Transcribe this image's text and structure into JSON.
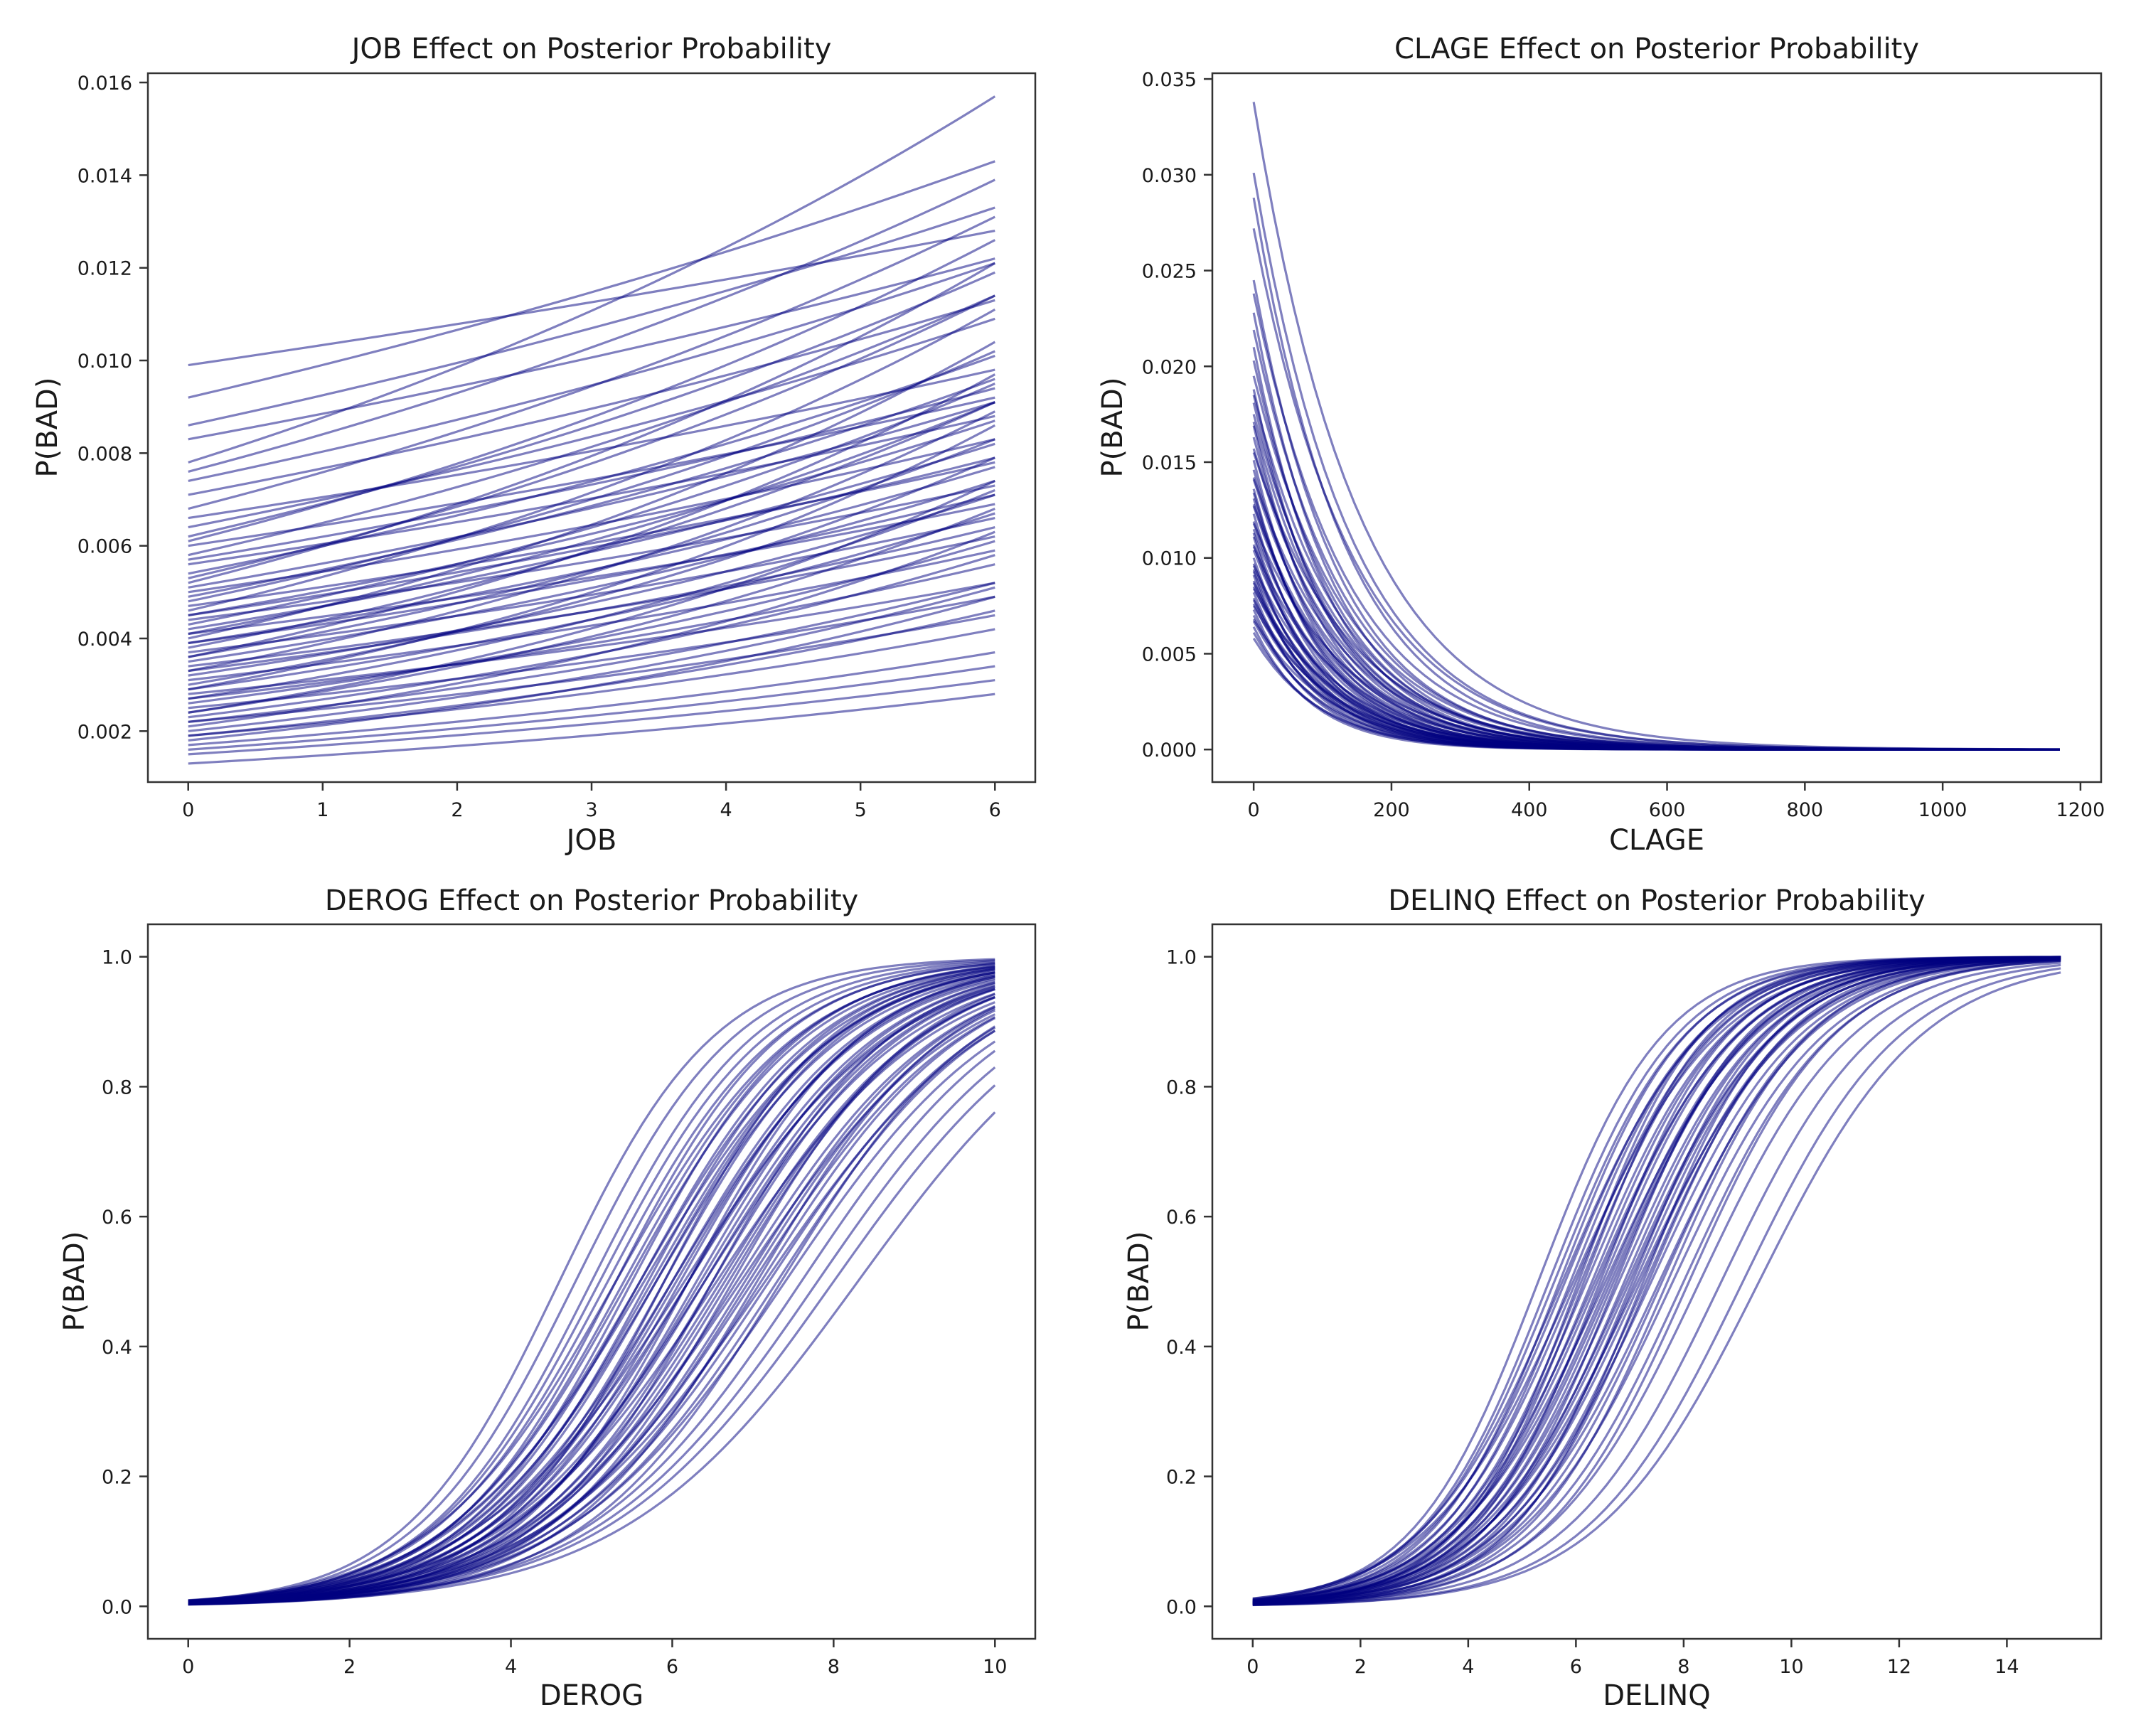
{
  "figure": {
    "line_color": "#000080",
    "line_opacity": 0.5,
    "background": "#ffffff"
  },
  "chart_data": [
    {
      "type": "line",
      "title": "JOB Effect on Posterior Probability",
      "xlabel": "JOB",
      "ylabel": "P(BAD)",
      "xlim": [
        -0.3,
        6.3
      ],
      "ylim": [
        0.0009,
        0.0162
      ],
      "xticks": [
        0,
        1,
        2,
        3,
        4,
        5,
        6
      ],
      "xtick_labels": [
        "0",
        "1",
        "2",
        "3",
        "4",
        "5",
        "6"
      ],
      "yticks": [
        0.002,
        0.004,
        0.006,
        0.008,
        0.01,
        0.012,
        0.014,
        0.016
      ],
      "ytick_labels": [
        "0.002",
        "0.004",
        "0.006",
        "0.008",
        "0.010",
        "0.012",
        "0.014",
        "0.016"
      ],
      "x_range": [
        0,
        6
      ],
      "curve_model": "logistic",
      "description": "~100 posterior draws; each line P = sigmoid(a + b*JOB)",
      "series": [
        {
          "start": 0.0099,
          "end": 0.0128
        },
        {
          "start": 0.0092,
          "end": 0.0143
        },
        {
          "start": 0.0086,
          "end": 0.0133
        },
        {
          "start": 0.0083,
          "end": 0.0122
        },
        {
          "start": 0.0078,
          "end": 0.0157
        },
        {
          "start": 0.0076,
          "end": 0.0139
        },
        {
          "start": 0.0074,
          "end": 0.0121
        },
        {
          "start": 0.0071,
          "end": 0.0113
        },
        {
          "start": 0.0068,
          "end": 0.0131
        },
        {
          "start": 0.0066,
          "end": 0.0098
        },
        {
          "start": 0.0064,
          "end": 0.0109
        },
        {
          "start": 0.0061,
          "end": 0.0126
        },
        {
          "start": 0.006,
          "end": 0.0092
        },
        {
          "start": 0.0058,
          "end": 0.0114
        },
        {
          "start": 0.0056,
          "end": 0.0088
        },
        {
          "start": 0.0054,
          "end": 0.0101
        },
        {
          "start": 0.0052,
          "end": 0.0121
        },
        {
          "start": 0.0051,
          "end": 0.0091
        },
        {
          "start": 0.005,
          "end": 0.0083
        },
        {
          "start": 0.0049,
          "end": 0.0096
        },
        {
          "start": 0.0047,
          "end": 0.0078
        },
        {
          "start": 0.0046,
          "end": 0.0111
        },
        {
          "start": 0.0045,
          "end": 0.0087
        },
        {
          "start": 0.0044,
          "end": 0.0073
        },
        {
          "start": 0.0043,
          "end": 0.0095
        },
        {
          "start": 0.0042,
          "end": 0.0082
        },
        {
          "start": 0.0041,
          "end": 0.0069
        },
        {
          "start": 0.004,
          "end": 0.0104
        },
        {
          "start": 0.0039,
          "end": 0.0077
        },
        {
          "start": 0.0038,
          "end": 0.0091
        },
        {
          "start": 0.0037,
          "end": 0.0066
        },
        {
          "start": 0.0036,
          "end": 0.0083
        },
        {
          "start": 0.0035,
          "end": 0.0074
        },
        {
          "start": 0.0034,
          "end": 0.0062
        },
        {
          "start": 0.0033,
          "end": 0.0089
        },
        {
          "start": 0.0032,
          "end": 0.0071
        },
        {
          "start": 0.0031,
          "end": 0.0059
        },
        {
          "start": 0.003,
          "end": 0.0079
        },
        {
          "start": 0.0029,
          "end": 0.0067
        },
        {
          "start": 0.0028,
          "end": 0.0052
        },
        {
          "start": 0.0027,
          "end": 0.0072
        },
        {
          "start": 0.0026,
          "end": 0.0061
        },
        {
          "start": 0.0025,
          "end": 0.0049
        },
        {
          "start": 0.0024,
          "end": 0.0068
        },
        {
          "start": 0.0023,
          "end": 0.0058
        },
        {
          "start": 0.0022,
          "end": 0.0045
        },
        {
          "start": 0.0021,
          "end": 0.0063
        },
        {
          "start": 0.002,
          "end": 0.0051
        },
        {
          "start": 0.0019,
          "end": 0.0042
        },
        {
          "start": 0.0018,
          "end": 0.0049
        },
        {
          "start": 0.0017,
          "end": 0.0037
        },
        {
          "start": 0.0016,
          "end": 0.0034
        },
        {
          "start": 0.0015,
          "end": 0.0031
        },
        {
          "start": 0.0013,
          "end": 0.0028
        },
        {
          "start": 0.0053,
          "end": 0.0114
        },
        {
          "start": 0.0048,
          "end": 0.0102
        },
        {
          "start": 0.0041,
          "end": 0.0091
        },
        {
          "start": 0.0036,
          "end": 0.0097
        },
        {
          "start": 0.0029,
          "end": 0.0086
        },
        {
          "start": 0.0024,
          "end": 0.0074
        },
        {
          "start": 0.0062,
          "end": 0.0119
        },
        {
          "start": 0.0057,
          "end": 0.0094
        },
        {
          "start": 0.0045,
          "end": 0.0079
        },
        {
          "start": 0.0039,
          "end": 0.0071
        },
        {
          "start": 0.0033,
          "end": 0.0064
        },
        {
          "start": 0.0027,
          "end": 0.0056
        },
        {
          "start": 0.0022,
          "end": 0.0052
        },
        {
          "start": 0.0019,
          "end": 0.0046
        }
      ]
    },
    {
      "type": "line",
      "title": "CLAGE Effect on Posterior Probability",
      "xlabel": "CLAGE",
      "ylabel": "P(BAD)",
      "xlim": [
        -60,
        1230
      ],
      "ylim": [
        -0.0017,
        0.0353
      ],
      "xticks": [
        0,
        200,
        400,
        600,
        800,
        1000,
        1200
      ],
      "xtick_labels": [
        "0",
        "200",
        "400",
        "600",
        "800",
        "1000",
        "1200"
      ],
      "yticks": [
        0.0,
        0.005,
        0.01,
        0.015,
        0.02,
        0.025,
        0.03,
        0.035
      ],
      "ytick_labels": [
        "0.000",
        "0.005",
        "0.010",
        "0.015",
        "0.020",
        "0.025",
        "0.030",
        "0.035"
      ],
      "x_range": [
        0,
        1170
      ],
      "curve_model": "logistic",
      "description": "~100 posterior draws; each line P = sigmoid(a + b*CLAGE), decaying to ~0",
      "series": [
        {
          "start": 0.0338,
          "scale": 148
        },
        {
          "start": 0.0301,
          "scale": 139
        },
        {
          "start": 0.0288,
          "scale": 131
        },
        {
          "start": 0.0272,
          "scale": 142
        },
        {
          "start": 0.0245,
          "scale": 124
        },
        {
          "start": 0.0238,
          "scale": 135
        },
        {
          "start": 0.0228,
          "scale": 118
        },
        {
          "start": 0.0219,
          "scale": 129
        },
        {
          "start": 0.021,
          "scale": 112
        },
        {
          "start": 0.0203,
          "scale": 121
        },
        {
          "start": 0.0195,
          "scale": 133
        },
        {
          "start": 0.0188,
          "scale": 108
        },
        {
          "start": 0.0181,
          "scale": 116
        },
        {
          "start": 0.0175,
          "scale": 126
        },
        {
          "start": 0.0169,
          "scale": 104
        },
        {
          "start": 0.0163,
          "scale": 113
        },
        {
          "start": 0.0157,
          "scale": 122
        },
        {
          "start": 0.0151,
          "scale": 101
        },
        {
          "start": 0.0146,
          "scale": 110
        },
        {
          "start": 0.0141,
          "scale": 119
        },
        {
          "start": 0.0136,
          "scale": 98
        },
        {
          "start": 0.0131,
          "scale": 107
        },
        {
          "start": 0.0127,
          "scale": 115
        },
        {
          "start": 0.0123,
          "scale": 95
        },
        {
          "start": 0.0119,
          "scale": 104
        },
        {
          "start": 0.0115,
          "scale": 112
        },
        {
          "start": 0.0111,
          "scale": 93
        },
        {
          "start": 0.0107,
          "scale": 101
        },
        {
          "start": 0.0104,
          "scale": 109
        },
        {
          "start": 0.01,
          "scale": 91
        },
        {
          "start": 0.0097,
          "scale": 99
        },
        {
          "start": 0.0094,
          "scale": 106
        },
        {
          "start": 0.0091,
          "scale": 89
        },
        {
          "start": 0.0088,
          "scale": 97
        },
        {
          "start": 0.0085,
          "scale": 104
        },
        {
          "start": 0.0082,
          "scale": 88
        },
        {
          "start": 0.0079,
          "scale": 95
        },
        {
          "start": 0.0076,
          "scale": 101
        },
        {
          "start": 0.0073,
          "scale": 86
        },
        {
          "start": 0.007,
          "scale": 93
        },
        {
          "start": 0.0067,
          "scale": 99
        },
        {
          "start": 0.0064,
          "scale": 85
        },
        {
          "start": 0.0061,
          "scale": 92
        },
        {
          "start": 0.0058,
          "scale": 97
        },
        {
          "start": 0.0155,
          "scale": 137
        },
        {
          "start": 0.0142,
          "scale": 128
        },
        {
          "start": 0.0128,
          "scale": 120
        },
        {
          "start": 0.0118,
          "scale": 131
        },
        {
          "start": 0.0106,
          "scale": 124
        },
        {
          "start": 0.0096,
          "scale": 117
        },
        {
          "start": 0.0087,
          "scale": 112
        },
        {
          "start": 0.0078,
          "scale": 108
        },
        {
          "start": 0.0185,
          "scale": 127
        },
        {
          "start": 0.0171,
          "scale": 119
        },
        {
          "start": 0.0134,
          "scale": 102
        },
        {
          "start": 0.0113,
          "scale": 96
        },
        {
          "start": 0.0093,
          "scale": 90
        },
        {
          "start": 0.0084,
          "scale": 121
        },
        {
          "start": 0.0075,
          "scale": 115
        },
        {
          "start": 0.0068,
          "scale": 110
        }
      ]
    },
    {
      "type": "line",
      "title": "DEROG Effect on Posterior Probability",
      "xlabel": "DEROG",
      "ylabel": "P(BAD)",
      "xlim": [
        -0.5,
        10.5
      ],
      "ylim": [
        -0.05,
        1.05
      ],
      "xticks": [
        0,
        2,
        4,
        6,
        8,
        10
      ],
      "xtick_labels": [
        "0",
        "2",
        "4",
        "6",
        "8",
        "10"
      ],
      "yticks": [
        0.0,
        0.2,
        0.4,
        0.6,
        0.8,
        1.0
      ],
      "ytick_labels": [
        "0.0",
        "0.2",
        "0.4",
        "0.6",
        "0.8",
        "1.0"
      ],
      "x_range": [
        0,
        10
      ],
      "curve_model": "logistic",
      "description": "~100 posterior draws; each line P = sigmoid(a + b*DEROG); midpoint and slope per draw",
      "series": [
        {
          "mid": 4.6,
          "slope": 1.03
        },
        {
          "mid": 4.8,
          "slope": 1.0
        },
        {
          "mid": 5.0,
          "slope": 0.98
        },
        {
          "mid": 5.1,
          "slope": 0.95
        },
        {
          "mid": 5.2,
          "slope": 0.93
        },
        {
          "mid": 5.3,
          "slope": 0.96
        },
        {
          "mid": 5.4,
          "slope": 0.91
        },
        {
          "mid": 5.5,
          "slope": 0.94
        },
        {
          "mid": 5.6,
          "slope": 0.9
        },
        {
          "mid": 5.6,
          "slope": 0.86
        },
        {
          "mid": 5.7,
          "slope": 0.92
        },
        {
          "mid": 5.8,
          "slope": 0.88
        },
        {
          "mid": 5.8,
          "slope": 0.84
        },
        {
          "mid": 5.9,
          "slope": 0.9
        },
        {
          "mid": 6.0,
          "slope": 0.86
        },
        {
          "mid": 6.0,
          "slope": 0.82
        },
        {
          "mid": 6.1,
          "slope": 0.88
        },
        {
          "mid": 6.2,
          "slope": 0.84
        },
        {
          "mid": 6.2,
          "slope": 0.8
        },
        {
          "mid": 6.3,
          "slope": 0.86
        },
        {
          "mid": 6.4,
          "slope": 0.82
        },
        {
          "mid": 6.4,
          "slope": 0.78
        },
        {
          "mid": 6.5,
          "slope": 0.84
        },
        {
          "mid": 6.6,
          "slope": 0.8
        },
        {
          "mid": 6.7,
          "slope": 0.82
        },
        {
          "mid": 6.8,
          "slope": 0.78
        },
        {
          "mid": 6.9,
          "slope": 0.8
        },
        {
          "mid": 7.0,
          "slope": 0.76
        },
        {
          "mid": 7.1,
          "slope": 0.78
        },
        {
          "mid": 7.2,
          "slope": 0.75
        },
        {
          "mid": 7.3,
          "slope": 0.76
        },
        {
          "mid": 7.4,
          "slope": 0.73
        },
        {
          "mid": 7.6,
          "slope": 0.74
        },
        {
          "mid": 7.8,
          "slope": 0.72
        },
        {
          "mid": 8.0,
          "slope": 0.7
        },
        {
          "mid": 8.3,
          "slope": 0.68
        },
        {
          "mid": 5.45,
          "slope": 0.89
        },
        {
          "mid": 5.75,
          "slope": 0.87
        },
        {
          "mid": 6.05,
          "slope": 0.85
        },
        {
          "mid": 6.35,
          "slope": 0.83
        },
        {
          "mid": 6.65,
          "slope": 0.81
        },
        {
          "mid": 6.95,
          "slope": 0.79
        },
        {
          "mid": 5.9,
          "slope": 0.95
        },
        {
          "mid": 6.2,
          "slope": 0.92
        },
        {
          "mid": 6.5,
          "slope": 0.89
        },
        {
          "mid": 6.75,
          "slope": 0.86
        },
        {
          "mid": 7.05,
          "slope": 0.83
        },
        {
          "mid": 7.35,
          "slope": 0.8
        },
        {
          "mid": 5.3,
          "slope": 0.88
        },
        {
          "mid": 5.65,
          "slope": 0.83
        },
        {
          "mid": 6.15,
          "slope": 0.77
        },
        {
          "mid": 6.55,
          "slope": 0.75
        },
        {
          "mid": 6.85,
          "slope": 0.74
        },
        {
          "mid": 7.15,
          "slope": 0.72
        }
      ]
    },
    {
      "type": "line",
      "title": "DELINQ Effect on Posterior Probability",
      "xlabel": "DELINQ",
      "ylabel": "P(BAD)",
      "xlim": [
        -0.75,
        15.75
      ],
      "ylim": [
        -0.05,
        1.05
      ],
      "xticks": [
        0,
        2,
        4,
        6,
        8,
        10,
        12,
        14
      ],
      "xtick_labels": [
        "0",
        "2",
        "4",
        "6",
        "8",
        "10",
        "12",
        "14"
      ],
      "yticks": [
        0.0,
        0.2,
        0.4,
        0.6,
        0.8,
        1.0
      ],
      "ytick_labels": [
        "0.0",
        "0.2",
        "0.4",
        "0.6",
        "0.8",
        "1.0"
      ],
      "x_range": [
        0,
        15
      ],
      "curve_model": "logistic",
      "description": "~100 posterior draws; each line P = sigmoid(a + b*DELINQ); midpoint and slope per draw",
      "series": [
        {
          "mid": 5.3,
          "slope": 0.86
        },
        {
          "mid": 5.5,
          "slope": 0.84
        },
        {
          "mid": 5.6,
          "slope": 0.82
        },
        {
          "mid": 5.7,
          "slope": 0.85
        },
        {
          "mid": 5.8,
          "slope": 0.8
        },
        {
          "mid": 5.9,
          "slope": 0.83
        },
        {
          "mid": 6.0,
          "slope": 0.79
        },
        {
          "mid": 6.1,
          "slope": 0.81
        },
        {
          "mid": 6.2,
          "slope": 0.78
        },
        {
          "mid": 6.3,
          "slope": 0.8
        },
        {
          "mid": 6.4,
          "slope": 0.77
        },
        {
          "mid": 6.5,
          "slope": 0.79
        },
        {
          "mid": 6.6,
          "slope": 0.76
        },
        {
          "mid": 6.7,
          "slope": 0.78
        },
        {
          "mid": 6.8,
          "slope": 0.75
        },
        {
          "mid": 6.9,
          "slope": 0.77
        },
        {
          "mid": 7.0,
          "slope": 0.74
        },
        {
          "mid": 7.1,
          "slope": 0.76
        },
        {
          "mid": 7.2,
          "slope": 0.73
        },
        {
          "mid": 7.3,
          "slope": 0.75
        },
        {
          "mid": 7.4,
          "slope": 0.72
        },
        {
          "mid": 7.6,
          "slope": 0.74
        },
        {
          "mid": 7.8,
          "slope": 0.71
        },
        {
          "mid": 8.0,
          "slope": 0.72
        },
        {
          "mid": 8.3,
          "slope": 0.7
        },
        {
          "mid": 8.7,
          "slope": 0.69
        },
        {
          "mid": 9.1,
          "slope": 0.68
        },
        {
          "mid": 9.4,
          "slope": 0.66
        },
        {
          "mid": 6.15,
          "slope": 0.86
        },
        {
          "mid": 6.45,
          "slope": 0.84
        },
        {
          "mid": 6.75,
          "slope": 0.82
        },
        {
          "mid": 7.05,
          "slope": 0.8
        },
        {
          "mid": 7.35,
          "slope": 0.78
        },
        {
          "mid": 5.95,
          "slope": 0.74
        },
        {
          "mid": 6.55,
          "slope": 0.72
        },
        {
          "mid": 7.15,
          "slope": 0.7
        },
        {
          "mid": 5.75,
          "slope": 0.77
        },
        {
          "mid": 6.35,
          "slope": 0.75
        },
        {
          "mid": 6.95,
          "slope": 0.73
        },
        {
          "mid": 7.55,
          "slope": 0.71
        },
        {
          "mid": 6.05,
          "slope": 0.88
        },
        {
          "mid": 6.65,
          "slope": 0.76
        },
        {
          "mid": 7.25,
          "slope": 0.82
        },
        {
          "mid": 7.7,
          "slope": 0.76
        },
        {
          "mid": 8.1,
          "slope": 0.74
        }
      ]
    }
  ]
}
